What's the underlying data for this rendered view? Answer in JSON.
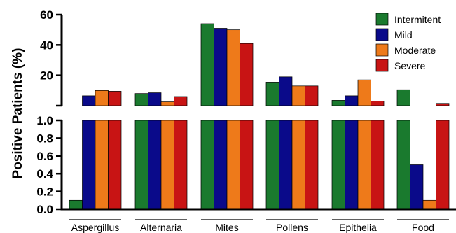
{
  "chart_data": {
    "type": "bar",
    "ylabel": "Positive Patients (%)",
    "broken_axis": true,
    "upper_panel": {
      "ylim": [
        0,
        60
      ],
      "ticks": [
        "20",
        "40",
        "60"
      ]
    },
    "lower_panel": {
      "ylim": [
        0,
        1.0
      ],
      "ticks": [
        "0.0",
        "0.2",
        "0.4",
        "0.6",
        "0.8",
        "1.0"
      ]
    },
    "categories": [
      "Aspergillus",
      "Alternaria",
      "Mites",
      "Pollens",
      "Epithelia",
      "Food"
    ],
    "series": [
      {
        "name": "Intermitent",
        "color": "#1a7a2e",
        "values": [
          0.1,
          8,
          54,
          15.5,
          3.5,
          10.5
        ]
      },
      {
        "name": "Mild",
        "color": "#0a0a8a",
        "values": [
          6.5,
          8.5,
          51,
          19,
          6.5,
          0.5
        ]
      },
      {
        "name": "Moderate",
        "color": "#ee7a1a",
        "values": [
          10,
          2.5,
          50,
          13,
          17,
          0.1
        ]
      },
      {
        "name": "Severe",
        "color": "#c81414",
        "values": [
          9.5,
          6,
          41,
          13,
          3,
          1.5
        ]
      }
    ],
    "legend_position": "top-right",
    "grid": false
  }
}
